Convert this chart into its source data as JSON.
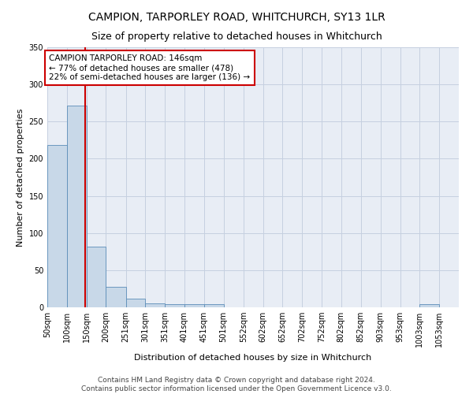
{
  "title": "CAMPION, TARPORLEY ROAD, WHITCHURCH, SY13 1LR",
  "subtitle": "Size of property relative to detached houses in Whitchurch",
  "xlabel": "Distribution of detached houses by size in Whitchurch",
  "ylabel": "Number of detached properties",
  "bar_color": "#c8d8e8",
  "bar_edge_color": "#5b8db8",
  "grid_color": "#c5d0e0",
  "background_color": "#ffffff",
  "plot_bg_color": "#e8edf5",
  "annotation_line_color": "#cc0000",
  "annotation_box_edge": "#cc0000",
  "annotation_text": "CAMPION TARPORLEY ROAD: 146sqm\n← 77% of detached houses are smaller (478)\n22% of semi-detached houses are larger (136) →",
  "property_size": 146,
  "categories": [
    "50sqm",
    "100sqm",
    "150sqm",
    "200sqm",
    "251sqm",
    "301sqm",
    "351sqm",
    "401sqm",
    "451sqm",
    "501sqm",
    "552sqm",
    "602sqm",
    "652sqm",
    "702sqm",
    "752sqm",
    "802sqm",
    "852sqm",
    "903sqm",
    "953sqm",
    "1003sqm",
    "1053sqm"
  ],
  "values": [
    218,
    271,
    82,
    28,
    12,
    5,
    4,
    4,
    4,
    0,
    0,
    0,
    0,
    0,
    0,
    0,
    0,
    0,
    0,
    4,
    0
  ],
  "bin_edges": [
    50,
    100,
    150,
    200,
    251,
    301,
    351,
    401,
    451,
    501,
    552,
    602,
    652,
    702,
    752,
    802,
    852,
    903,
    953,
    1003,
    1053,
    1103
  ],
  "ylim": [
    0,
    350
  ],
  "yticks": [
    0,
    50,
    100,
    150,
    200,
    250,
    300,
    350
  ],
  "footer_text": "Contains HM Land Registry data © Crown copyright and database right 2024.\nContains public sector information licensed under the Open Government Licence v3.0.",
  "title_fontsize": 10,
  "subtitle_fontsize": 9,
  "axis_label_fontsize": 8,
  "tick_fontsize": 7,
  "annotation_fontsize": 7.5,
  "footer_fontsize": 6.5
}
